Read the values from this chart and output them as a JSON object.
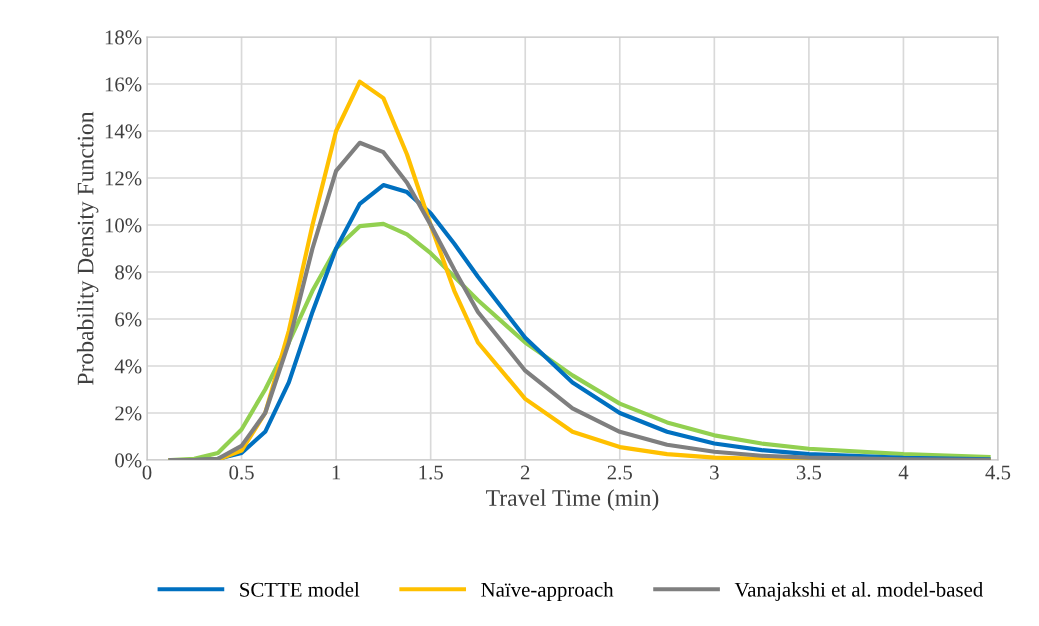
{
  "chart_data": {
    "type": "line",
    "xlabel": "Travel Time (min)",
    "ylabel": "Probability Density Function",
    "x": [
      0.125,
      0.25,
      0.375,
      0.5,
      0.625,
      0.75,
      0.875,
      1,
      1.125,
      1.25,
      1.375,
      1.5,
      1.625,
      1.75,
      2,
      2.25,
      2.5,
      2.75,
      3,
      3.25,
      3.5,
      4,
      4.45
    ],
    "series": [
      {
        "color": "#92d050",
        "values": [
          0,
          0.05,
          0.3,
          1.3,
          3.0,
          5.0,
          7.2,
          9.0,
          9.95,
          10.05,
          9.6,
          8.8,
          7.8,
          6.8,
          5.0,
          3.6,
          2.4,
          1.6,
          1.05,
          0.7,
          0.48,
          0.25,
          0.13
        ]
      },
      {
        "name": "SCTTE model",
        "color": "#0070c0",
        "values": [
          0,
          0,
          0.05,
          0.3,
          1.2,
          3.3,
          6.3,
          9.0,
          10.9,
          11.7,
          11.4,
          10.5,
          9.2,
          7.8,
          5.2,
          3.3,
          2.0,
          1.2,
          0.7,
          0.42,
          0.25,
          0.09,
          0.03
        ]
      },
      {
        "name": "Naïve-approach",
        "color": "#ffc000",
        "values": [
          0,
          0,
          0.02,
          0.4,
          2.0,
          5.5,
          10.0,
          14.0,
          16.1,
          15.4,
          13.0,
          10.0,
          7.2,
          5.0,
          2.6,
          1.2,
          0.55,
          0.25,
          0.1,
          0.05,
          0.02,
          0,
          0
        ]
      },
      {
        "name": "Vanajakshi et al. model-based",
        "color": "#7f7f7f",
        "values": [
          0,
          0,
          0.05,
          0.6,
          2.0,
          5.0,
          9.0,
          12.3,
          13.5,
          13.1,
          11.8,
          10.0,
          8.1,
          6.3,
          3.8,
          2.2,
          1.2,
          0.65,
          0.35,
          0.18,
          0.1,
          0.03,
          0.01
        ]
      }
    ],
    "xlim": [
      0,
      4.5
    ],
    "xticks": [
      0,
      0.5,
      1,
      1.5,
      2,
      2.5,
      3,
      3.5,
      4,
      4.5
    ],
    "ylim": [
      0,
      18
    ],
    "yticks": [
      {
        "value": 0,
        "label": "0%"
      },
      {
        "value": 2,
        "label": "2%"
      },
      {
        "value": 4,
        "label": "4%"
      },
      {
        "value": 6,
        "label": "6%"
      },
      {
        "value": 8,
        "label": "8%"
      },
      {
        "value": 10,
        "label": "10%"
      },
      {
        "value": 12,
        "label": "12%"
      },
      {
        "value": 14,
        "label": "14%"
      },
      {
        "value": 16,
        "label": "16%"
      },
      {
        "value": 18,
        "label": "18%"
      }
    ],
    "grid": true,
    "legend": "bottom",
    "marker": "none",
    "line_style": "solid"
  }
}
